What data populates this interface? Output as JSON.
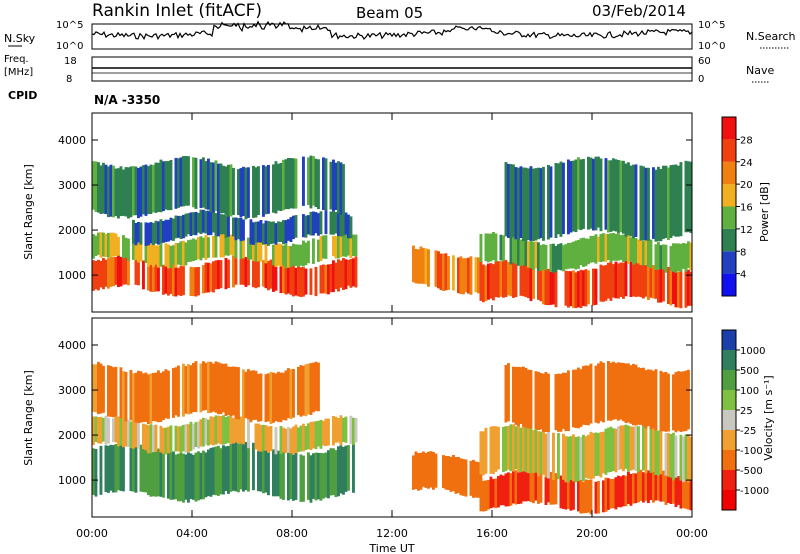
{
  "header": {
    "station": "Rankin Inlet (fitACF)",
    "beam": "Beam 05",
    "date": "03/Feb/2014"
  },
  "status_panels": {
    "nsky_label": "N.Sky",
    "nsearch_label": "N.Search",
    "noise_ticks": [
      "10^5",
      "10^0"
    ],
    "freq_label_1": "Freq.",
    "freq_label_2": "[MHz]",
    "freq_ticks": [
      "18",
      "8"
    ],
    "nave_label": "Nave",
    "nave_ticks": [
      "60",
      "0"
    ],
    "cpid_label": "CPID",
    "cpid_value": "N/A -3350"
  },
  "colors": {
    "power_scale": [
      "#1010f0",
      "#2040c0",
      "#2f8050",
      "#60b040",
      "#f0b020",
      "#f08010",
      "#f04010",
      "#f01010"
    ],
    "velocity_scale": [
      "#1a3fa8",
      "#2f7f5f",
      "#4f9f40",
      "#80c040",
      "#c8c8c0",
      "#f0a030",
      "#f07010",
      "#f02010",
      "#f00000"
    ]
  },
  "chart_data": [
    {
      "type": "heatmap",
      "name": "power",
      "ylabel": "Slant Range [km]",
      "xlabel": "Time UT",
      "x_ticks": [
        "00:00",
        "04:00",
        "08:00",
        "12:00",
        "16:00",
        "20:00",
        "00:00"
      ],
      "y_ticks": [
        1000,
        2000,
        3000,
        4000
      ],
      "ylim": [
        180,
        4600
      ],
      "xlim_hours": [
        0,
        24
      ],
      "colorbar": {
        "label": "Power [dB]",
        "ticks": [
          4,
          8,
          12,
          16,
          20,
          24,
          28
        ],
        "range": [
          0,
          32
        ]
      },
      "bands": [
        {
          "t0": 0.0,
          "t1": 10.5,
          "r0": 650,
          "r1": 1300,
          "value": 26
        },
        {
          "t0": 0.0,
          "t1": 10.5,
          "r0": 1300,
          "r1": 1800,
          "value": 16
        },
        {
          "t0": 1.5,
          "t1": 10.5,
          "r0": 1800,
          "r1": 2300,
          "value": 8
        },
        {
          "t0": 0.0,
          "t1": 10.0,
          "r0": 2400,
          "r1": 3500,
          "value": 10
        },
        {
          "t0": 12.8,
          "t1": 15.5,
          "r0": 700,
          "r1": 1500,
          "value": 22
        },
        {
          "t0": 15.5,
          "t1": 24.0,
          "r0": 400,
          "r1": 1200,
          "value": 26
        },
        {
          "t0": 15.5,
          "t1": 24.0,
          "r0": 1200,
          "r1": 1800,
          "value": 14
        },
        {
          "t0": 16.5,
          "t1": 24.0,
          "r0": 1900,
          "r1": 3500,
          "value": 10
        }
      ]
    },
    {
      "type": "heatmap",
      "name": "velocity",
      "ylabel": "Slant Range [km]",
      "xlabel": "Time UT",
      "x_ticks": [
        "00:00",
        "04:00",
        "08:00",
        "12:00",
        "16:00",
        "20:00",
        "00:00"
      ],
      "y_ticks": [
        1000,
        2000,
        3000,
        4000
      ],
      "ylim": [
        180,
        4600
      ],
      "xlim_hours": [
        0,
        24
      ],
      "colorbar": {
        "label": "Velocity [m s⁻¹]",
        "ticks": [
          "1000",
          "500",
          "100",
          "25",
          "-25",
          "-100",
          "-500",
          "-1000"
        ]
      },
      "bands": [
        {
          "t0": 0.0,
          "t1": 10.5,
          "r0": 650,
          "r1": 1700,
          "value": 300
        },
        {
          "t0": 0.0,
          "t1": 10.5,
          "r0": 1700,
          "r1": 2300,
          "value": 0
        },
        {
          "t0": 0.0,
          "t1": 9.0,
          "r0": 2400,
          "r1": 3500,
          "value": -80
        },
        {
          "t0": 12.8,
          "t1": 15.5,
          "r0": 700,
          "r1": 1500,
          "value": -200
        },
        {
          "t0": 15.5,
          "t1": 24.0,
          "r0": 400,
          "r1": 1100,
          "value": -300
        },
        {
          "t0": 15.5,
          "t1": 24.0,
          "r0": 1100,
          "r1": 2100,
          "value": 0
        },
        {
          "t0": 16.5,
          "t1": 24.0,
          "r0": 2200,
          "r1": 3500,
          "value": -150
        }
      ]
    }
  ]
}
